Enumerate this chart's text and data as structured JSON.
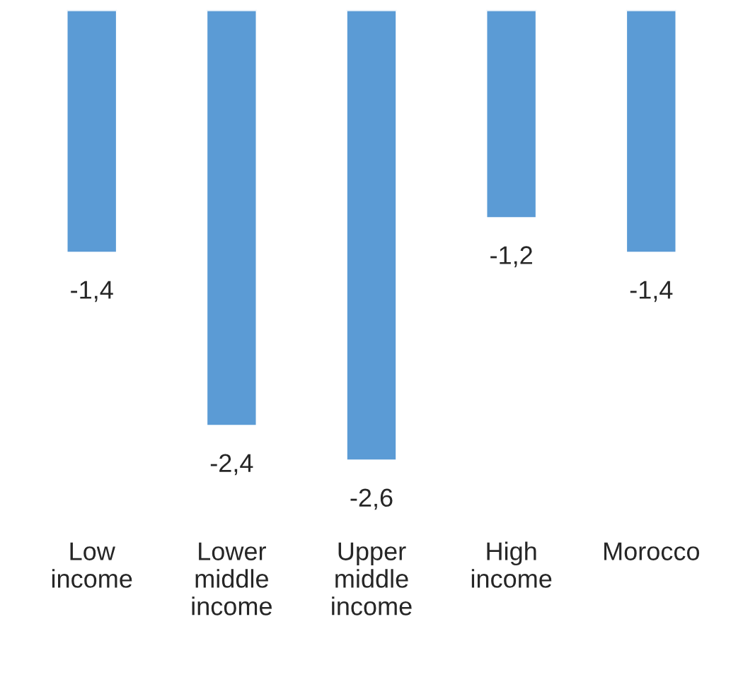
{
  "chart_data": {
    "type": "bar",
    "categories": [
      "Low\nincome",
      "Lower\nmiddle\nincome",
      "Upper\nmiddle\nincome",
      "High\nincome",
      "Morocco"
    ],
    "values": [
      -1.4,
      -2.4,
      -2.6,
      -1.2,
      -1.4
    ],
    "value_labels": [
      "-1,4",
      "-2,4",
      "-2,6",
      "-1,2",
      "-1,4"
    ],
    "color": "#5b9bd5",
    "grid": false,
    "legend": false
  }
}
